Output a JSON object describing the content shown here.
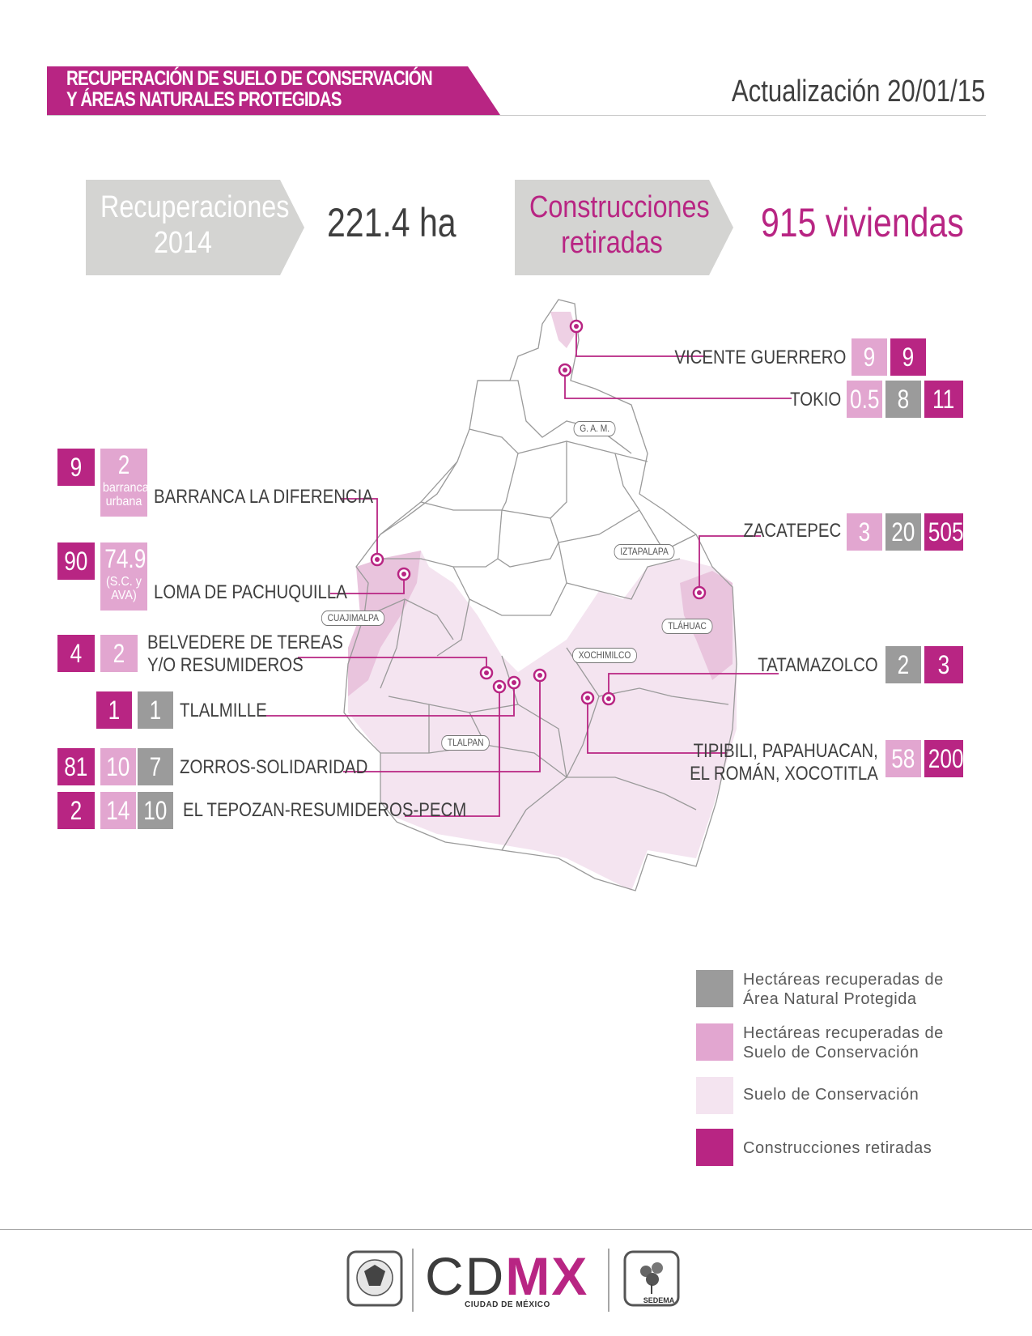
{
  "header": {
    "title_line1": "RECUPERACIÓN DE SUELO DE CONSERVACIÓN",
    "title_line2": "Y ÁREAS NATURALES PROTEGIDAS",
    "update": "Actualización 20/01/15"
  },
  "stats": {
    "recuperaciones_label_1": "Recuperaciones",
    "recuperaciones_label_2": "2014",
    "recuperaciones_value": "221.4 ha",
    "construcciones_label_1": "Construcciones",
    "construcciones_label_2": "retiradas",
    "construcciones_value": "915 viviendas"
  },
  "delegaciones": {
    "gam": "G. A. M.",
    "iztapalapa": "IZTAPALAPA",
    "cuajimalpa": "CUAJIMALPA",
    "tlahuac": "TLÁHUAC",
    "xochimilco": "XOCHIMILCO",
    "tlalpan": "TLALPAN"
  },
  "sites": {
    "vicente_guerrero": {
      "name": "VICENTE GUERRERO",
      "sc": "9",
      "constr": "9"
    },
    "tokio": {
      "name": "TOKIO",
      "sc": "0.5",
      "anp": "8",
      "constr": "11"
    },
    "zacatepec": {
      "name": "ZACATEPEC",
      "sc": "3",
      "anp": "20",
      "constr": "505"
    },
    "tatamazolco": {
      "name": "TATAMAZOLCO",
      "anp": "2",
      "constr": "3"
    },
    "tipibili": {
      "name_1": "TIPIBILI, PAPAHUACAN,",
      "name_2": "EL ROMÁN, XOCOTITLA",
      "sc": "58",
      "constr": "200"
    },
    "barranca": {
      "name": "BARRANCA LA DIFERENCIA",
      "constr": "9",
      "sc": "2",
      "sc_note_1": "barranca",
      "sc_note_2": "urbana"
    },
    "loma": {
      "name": "LOMA DE PACHUQUILLA",
      "constr": "90",
      "sc": "74.9",
      "sc_note_1": "(S.C. y",
      "sc_note_2": "AVA)"
    },
    "belvedere": {
      "name_1": "BELVEDERE DE TEREAS",
      "name_2": "Y/O RESUMIDEROS",
      "constr": "4",
      "sc": "2"
    },
    "tlalmille": {
      "name": "TLALMILLE",
      "constr": "1",
      "anp": "1"
    },
    "zorros": {
      "name": "ZORROS-SOLIDARIDAD",
      "constr": "81",
      "sc": "10",
      "anp": "7"
    },
    "tepozan": {
      "name": "EL TEPOZAN-RESUMIDEROS-PECM",
      "constr": "2",
      "sc": "14",
      "anp": "10"
    }
  },
  "legend": {
    "anp_1": "Hectáreas recuperadas de",
    "anp_2": "Área Natural Protegida",
    "sc_1": "Hectáreas recuperadas de",
    "sc_2": "Suelo de Conservación",
    "soil": "Suelo de Conservación",
    "constr": "Construcciones retiradas"
  },
  "footer": {
    "cdmx_1": "CD",
    "cdmx_2": "MX",
    "cdmx_sub": "CIUDAD DE MÉXICO",
    "sedema": "SEDEMA"
  },
  "colors": {
    "magenta": "#b82583",
    "pink": "#e2a6d0",
    "grey": "#9b9b9b",
    "soil": "#f4e4f0"
  }
}
